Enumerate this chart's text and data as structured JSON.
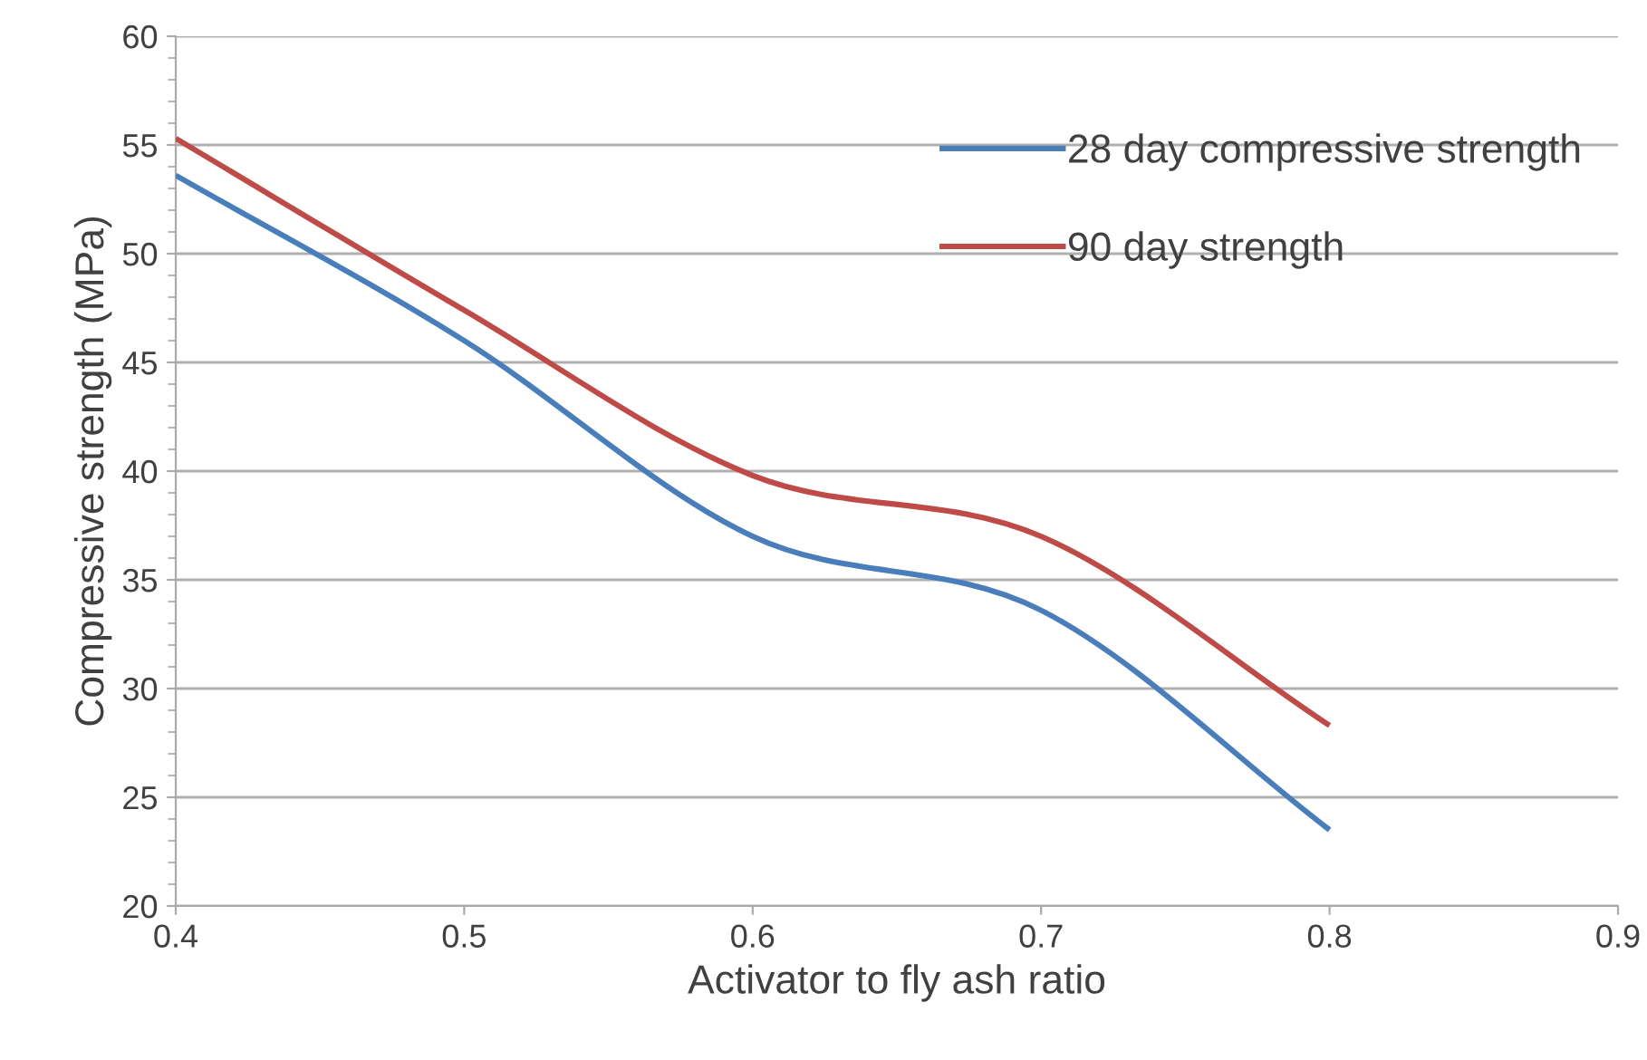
{
  "chart_data": {
    "type": "line",
    "xlabel": "Activator to fly ash ratio",
    "ylabel": "Compressive strength (MPa)",
    "x": [
      0.4,
      0.5,
      0.6,
      0.7,
      0.8
    ],
    "series": [
      {
        "name": "28 day compressive strength",
        "color": "#4a7ebb",
        "values": [
          53.6,
          46.0,
          37.0,
          33.6,
          23.5
        ]
      },
      {
        "name": "90 day strength",
        "color": "#be4b48",
        "values": [
          55.3,
          47.4,
          39.8,
          37.0,
          28.3
        ]
      }
    ],
    "xlim": [
      0.4,
      0.9
    ],
    "xticks": [
      0.4,
      0.5,
      0.6,
      0.7,
      0.8,
      0.9
    ],
    "ylim": [
      20,
      60
    ],
    "yticks": [
      20,
      25,
      30,
      35,
      40,
      45,
      50,
      55,
      60
    ],
    "grid": "y",
    "legend": "top right",
    "marker": "none",
    "line_style": "solid"
  }
}
